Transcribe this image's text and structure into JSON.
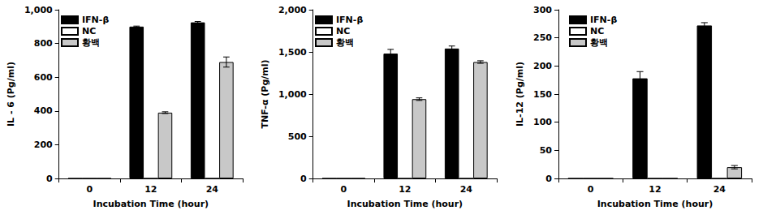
{
  "chart_data": [
    {
      "type": "bar",
      "ylabel": "IL - 6 (Pg/ml)",
      "xlabel": "Incubation Time (hour)",
      "categories": [
        "0",
        "12",
        "24"
      ],
      "series": [
        {
          "name": "IFN-β",
          "color": "#000000",
          "values": [
            0,
            900,
            925
          ],
          "errors": [
            0,
            3,
            5
          ]
        },
        {
          "name": "NC",
          "color": "#ffffff",
          "values": [
            0,
            0,
            0
          ]
        },
        {
          "name": "황백",
          "color": "#c8c8c8",
          "values": [
            0,
            390,
            690
          ],
          "errors": [
            0,
            5,
            30
          ]
        }
      ],
      "ylim": [
        0,
        1000
      ],
      "yticks": [
        0,
        200,
        400,
        600,
        800,
        1000
      ],
      "grid": false,
      "legend": "upper left"
    },
    {
      "type": "bar",
      "ylabel": "TNF-α (Pg/ml)",
      "xlabel": "Incubation Time (hour)",
      "categories": [
        "0",
        "12",
        "24"
      ],
      "series": [
        {
          "name": "IFN-β",
          "color": "#000000",
          "values": [
            0,
            1480,
            1540
          ],
          "errors": [
            0,
            50,
            30
          ]
        },
        {
          "name": "NC",
          "color": "#ffffff",
          "values": [
            0,
            0,
            0
          ]
        },
        {
          "name": "황백",
          "color": "#c8c8c8",
          "values": [
            0,
            940,
            1380
          ],
          "errors": [
            0,
            15,
            15
          ]
        }
      ],
      "ylim": [
        0,
        2000
      ],
      "yticks": [
        0,
        500,
        1000,
        1500,
        2000
      ],
      "grid": false,
      "legend": "upper left"
    },
    {
      "type": "bar",
      "ylabel": "IL-12 (Pg/ml)",
      "xlabel": "Incubation Time (hour)",
      "categories": [
        "0",
        "12",
        "24"
      ],
      "series": [
        {
          "name": "IFN-β",
          "color": "#000000",
          "values": [
            0,
            178,
            272
          ],
          "errors": [
            0,
            12,
            5
          ]
        },
        {
          "name": "NC",
          "color": "#ffffff",
          "values": [
            0,
            0,
            0
          ]
        },
        {
          "name": "황백",
          "color": "#c8c8c8",
          "values": [
            0,
            0,
            20
          ],
          "errors": [
            0,
            0,
            3
          ]
        }
      ],
      "ylim": [
        0,
        300
      ],
      "yticks": [
        0,
        50,
        100,
        150,
        200,
        250,
        300
      ],
      "grid": false,
      "legend": "upper left"
    }
  ]
}
